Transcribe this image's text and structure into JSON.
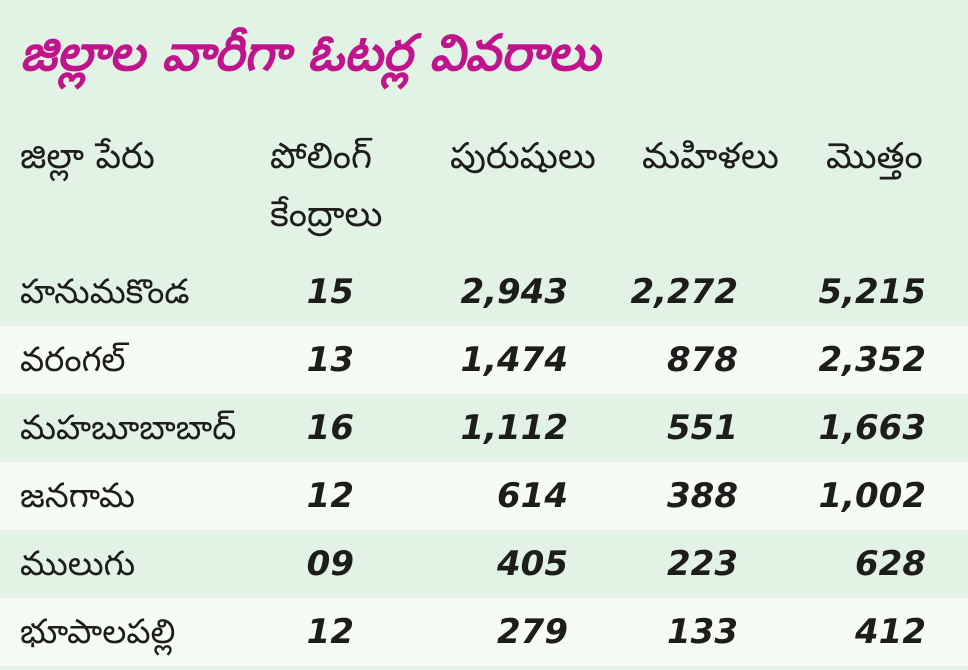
{
  "title": "జిల్లాల వారీగా ఓటర్ల వివరాలు",
  "headers": {
    "district": "జిల్లా పేరు",
    "polling_line1": "పోలింగ్",
    "polling_line2": "కేంద్రాలు",
    "men": "పురుషులు",
    "women": "మహిళలు",
    "total": "మొత్తం"
  },
  "rows": [
    {
      "district": "హనుమకొండ",
      "polling": "15",
      "men": "2,943",
      "women": "2,272",
      "total": "5,215"
    },
    {
      "district": "వరంగల్",
      "polling": "13",
      "men": "1,474",
      "women": "878",
      "total": "2,352"
    },
    {
      "district": "మహబూబాబాద్",
      "polling": "16",
      "men": "1,112",
      "women": "551",
      "total": "1,663"
    },
    {
      "district": "జనగామ",
      "polling": "12",
      "men": "614",
      "women": "388",
      "total": "1,002"
    },
    {
      "district": "ములుగు",
      "polling": "09",
      "men": "405",
      "women": "223",
      "total": "628"
    },
    {
      "district": "భూపాలపల్లి",
      "polling": "12",
      "men": "279",
      "women": "133",
      "total": "412"
    }
  ],
  "colors": {
    "title": "#c0148c",
    "background": "#e2f2e4",
    "alt_row": "#f6fbf6",
    "text": "#1d1d1b"
  }
}
